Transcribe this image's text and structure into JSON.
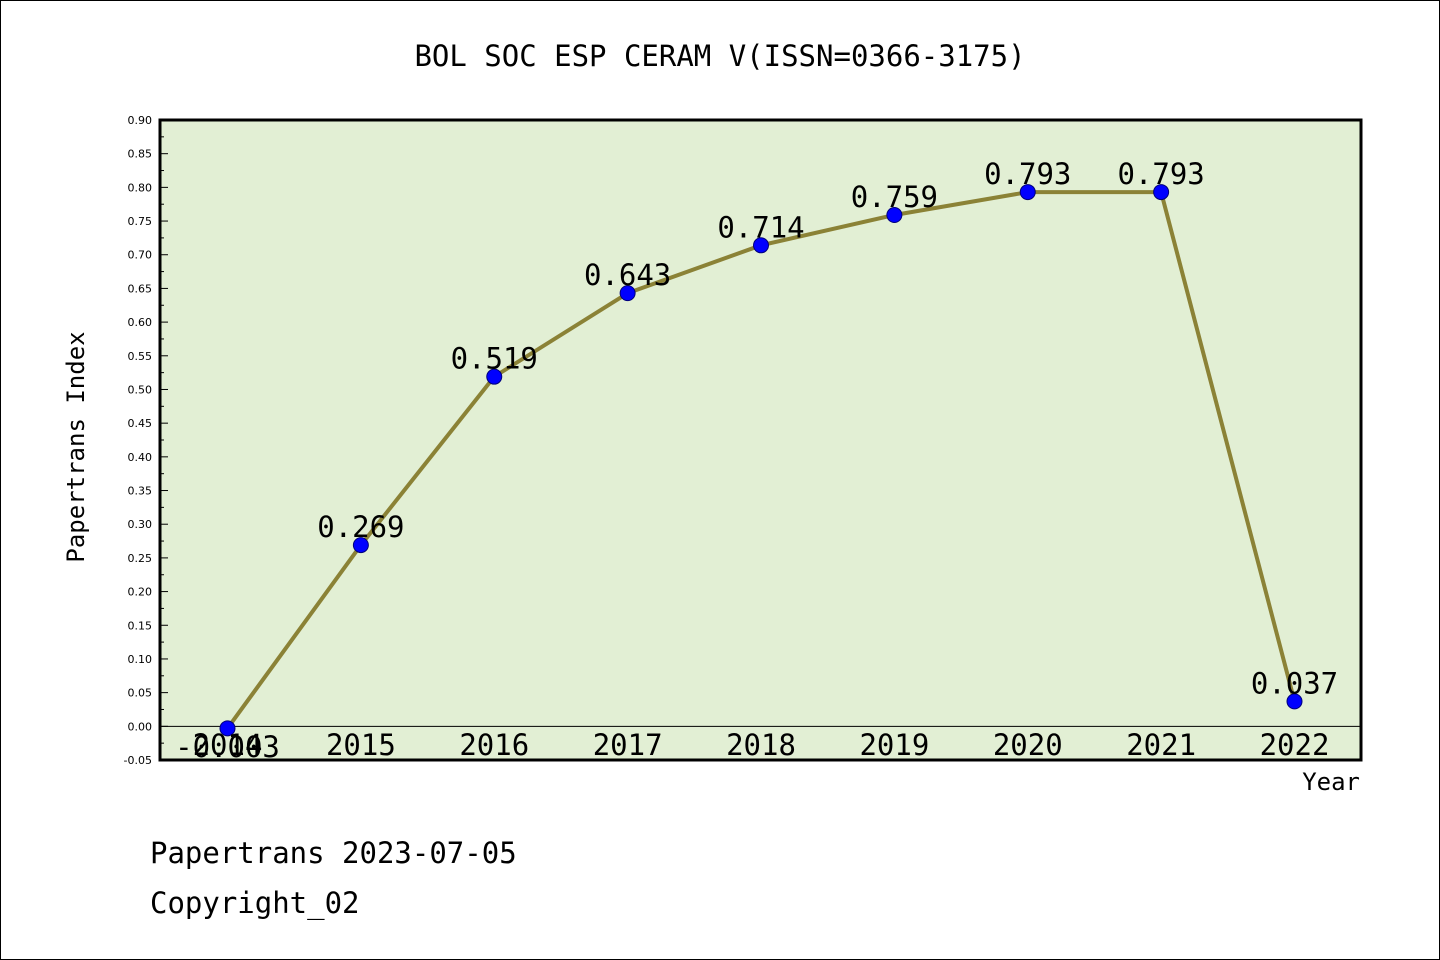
{
  "chart_data": {
    "type": "line",
    "title": "BOL SOC ESP CERAM V(ISSN=0366-3175)",
    "xlabel": "Year",
    "ylabel": "Papertrans Index",
    "categories": [
      "2014",
      "2015",
      "2016",
      "2017",
      "2018",
      "2019",
      "2020",
      "2021",
      "2022"
    ],
    "values": [
      -0.003,
      0.269,
      0.519,
      0.643,
      0.714,
      0.759,
      0.793,
      0.793,
      0.037
    ],
    "value_labels": [
      "-0.003",
      "0.269",
      "0.519",
      "0.643",
      "0.714",
      "0.759",
      "0.793",
      "0.793",
      "0.037"
    ],
    "x_tick_labels": [
      "2014",
      "2015",
      "2016",
      "2017",
      "2018",
      "2019",
      "2020",
      "2021",
      "2022"
    ],
    "ylim": [
      -0.05,
      0.9
    ],
    "y_ticks": [
      "-0.05",
      "0.00",
      "0.05",
      "0.10",
      "0.15",
      "0.20",
      "0.25",
      "0.30",
      "0.35",
      "0.40",
      "0.45",
      "0.50",
      "0.55",
      "0.60",
      "0.65",
      "0.70",
      "0.75",
      "0.80",
      "0.85",
      "0.90"
    ],
    "grid": false,
    "colors": {
      "line": "#8b8236",
      "marker": "#0000ff",
      "plot_background": "#e2efd4"
    }
  },
  "footer": {
    "date_line": "Papertrans 2023-07-05",
    "copyright": "Copyright_02"
  }
}
